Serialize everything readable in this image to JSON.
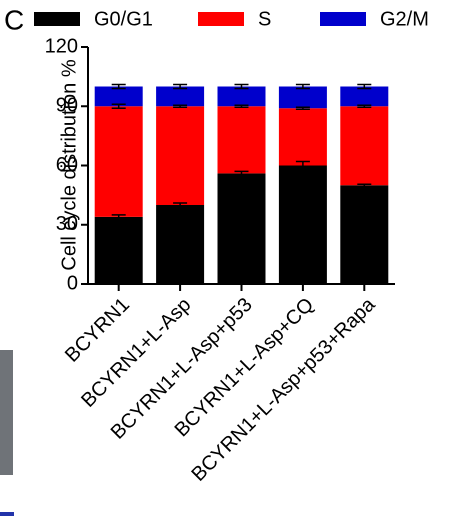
{
  "chart_data": {
    "type": "stacked_bar",
    "panel_label": "C",
    "y_label": "Cell cycle distribution %",
    "categories": [
      "BCYRN1",
      "BCYRN1+L-Asp",
      "BCYRN1+L-Asp+p53",
      "BCYRN1+L-Asp+CQ",
      "BCYRN1+L-Asp+p53+Rapa"
    ],
    "series": [
      {
        "name": "G0/G1",
        "color": "#000000",
        "values": [
          34,
          40,
          56,
          60,
          50
        ],
        "errors": [
          1,
          1,
          1,
          2,
          0.5
        ]
      },
      {
        "name": "S",
        "color": "#ff0000",
        "values": [
          56,
          50,
          34,
          29,
          40
        ],
        "errors": [
          1,
          0.5,
          0.5,
          0.5,
          0.5
        ]
      },
      {
        "name": "G2/M",
        "color": "#0000cc",
        "values": [
          10,
          10,
          10,
          11,
          10
        ],
        "errors": [
          1,
          1,
          1,
          1,
          1
        ]
      }
    ],
    "ylim": [
      0,
      120
    ],
    "yticks": [
      0,
      30,
      60,
      90,
      120
    ],
    "legend": "top"
  }
}
